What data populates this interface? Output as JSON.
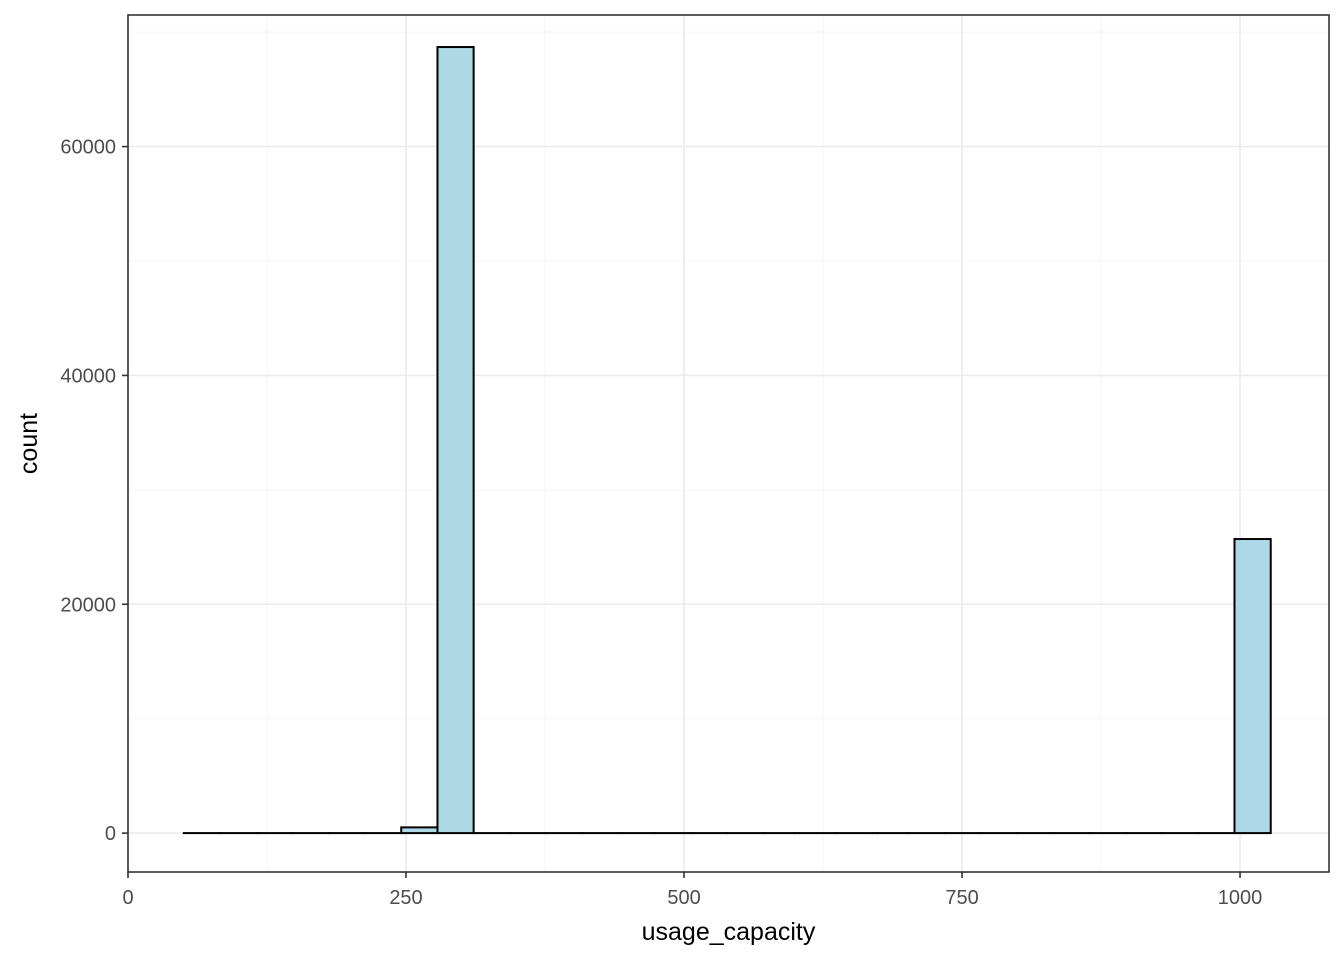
{
  "chart_data": {
    "type": "histogram",
    "xlabel": "usage_capacity",
    "ylabel": "count",
    "xlim": [
      0,
      1080
    ],
    "ylim": [
      -3400,
      71500
    ],
    "x_ticks": [
      0,
      250,
      500,
      750,
      1000
    ],
    "x_tick_labels": [
      "0",
      "250",
      "500",
      "750",
      "1000"
    ],
    "y_ticks": [
      0,
      20000,
      40000,
      60000
    ],
    "y_tick_labels": [
      "0",
      "20000",
      "40000",
      "60000"
    ],
    "bin_width": 32.58,
    "bins": [
      {
        "x0": 50.2,
        "x1": 82.8,
        "count": 0
      },
      {
        "x0": 82.8,
        "x1": 115.4,
        "count": 0
      },
      {
        "x0": 115.4,
        "x1": 147.9,
        "count": 0
      },
      {
        "x0": 147.9,
        "x1": 180.5,
        "count": 0
      },
      {
        "x0": 180.5,
        "x1": 213.1,
        "count": 0
      },
      {
        "x0": 213.1,
        "x1": 245.7,
        "count": 0
      },
      {
        "x0": 245.7,
        "x1": 278.3,
        "count": 500
      },
      {
        "x0": 278.3,
        "x1": 310.8,
        "count": 68700
      },
      {
        "x0": 310.8,
        "x1": 343.4,
        "count": 0
      },
      {
        "x0": 343.4,
        "x1": 376.0,
        "count": 0
      },
      {
        "x0": 376.0,
        "x1": 408.6,
        "count": 0
      },
      {
        "x0": 408.6,
        "x1": 441.2,
        "count": 0
      },
      {
        "x0": 441.2,
        "x1": 473.7,
        "count": 0
      },
      {
        "x0": 473.7,
        "x1": 506.3,
        "count": 0
      },
      {
        "x0": 506.3,
        "x1": 538.9,
        "count": 0
      },
      {
        "x0": 538.9,
        "x1": 571.5,
        "count": 0
      },
      {
        "x0": 571.5,
        "x1": 604.1,
        "count": 0
      },
      {
        "x0": 604.1,
        "x1": 636.6,
        "count": 0
      },
      {
        "x0": 636.6,
        "x1": 669.2,
        "count": 0
      },
      {
        "x0": 669.2,
        "x1": 701.8,
        "count": 0
      },
      {
        "x0": 701.8,
        "x1": 734.4,
        "count": 0
      },
      {
        "x0": 734.4,
        "x1": 767.0,
        "count": 0
      },
      {
        "x0": 767.0,
        "x1": 799.5,
        "count": 0
      },
      {
        "x0": 799.5,
        "x1": 832.1,
        "count": 0
      },
      {
        "x0": 832.1,
        "x1": 864.7,
        "count": 0
      },
      {
        "x0": 864.7,
        "x1": 897.3,
        "count": 0
      },
      {
        "x0": 897.3,
        "x1": 929.9,
        "count": 0
      },
      {
        "x0": 929.9,
        "x1": 962.4,
        "count": 0
      },
      {
        "x0": 962.4,
        "x1": 995.0,
        "count": 0
      },
      {
        "x0": 995.0,
        "x1": 1027.6,
        "count": 25700
      }
    ],
    "grid": true,
    "colors": {
      "bar_fill": "#add8e6",
      "bar_stroke": "#000000",
      "grid_major": "#ebebeb",
      "grid_minor": "#f5f5f5",
      "panel_border": "#333333",
      "tick_label": "#4d4d4d",
      "axis_title": "#000000",
      "background": "#ffffff"
    }
  }
}
